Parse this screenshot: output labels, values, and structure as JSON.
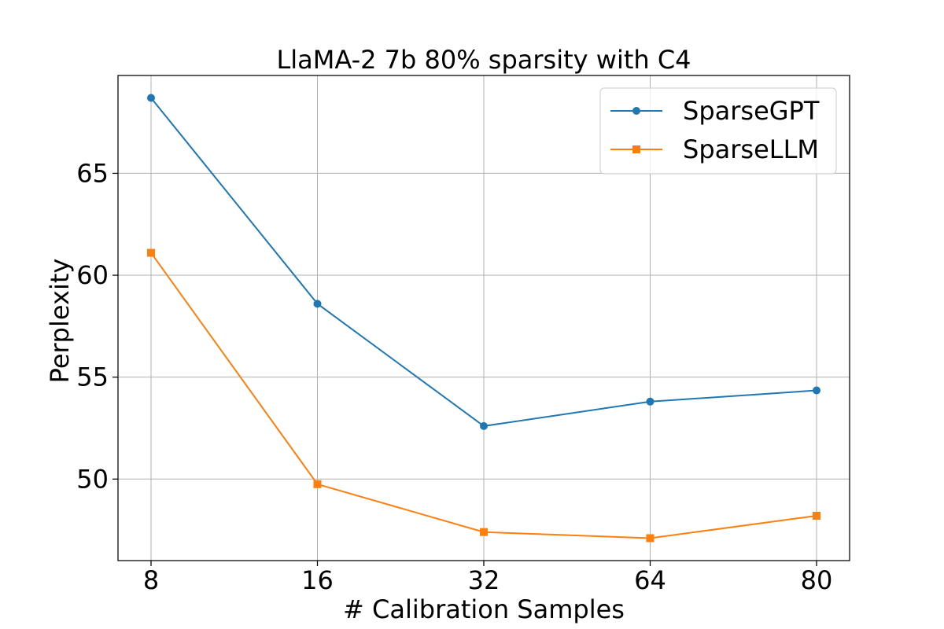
{
  "chart_data": {
    "type": "line",
    "title": "LlaMA-2 7b 80% sparsity with C4",
    "xlabel": "# Calibration Samples",
    "ylabel": "Perplexity",
    "categories": [
      "8",
      "16",
      "32",
      "64",
      "80"
    ],
    "yticks": [
      50,
      55,
      60,
      65
    ],
    "ylim": [
      46.0,
      69.8
    ],
    "grid": true,
    "legend_position": "top-right",
    "series": [
      {
        "name": "SparseGPT",
        "color": "#1f77b4",
        "marker": "circle",
        "values": [
          68.7,
          58.6,
          52.6,
          53.8,
          54.35
        ]
      },
      {
        "name": "SparseLLM",
        "color": "#ff7f0e",
        "marker": "square",
        "values": [
          61.1,
          49.75,
          47.4,
          47.1,
          48.2
        ]
      }
    ]
  }
}
